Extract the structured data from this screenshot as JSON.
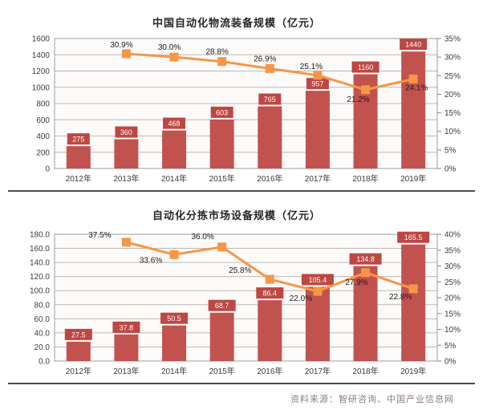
{
  "chart_data": [
    {
      "type": "combo_bar_line",
      "title": "中国自动化物流装备规模（亿元）",
      "categories": [
        "2012年",
        "2013年",
        "2014年",
        "2015年",
        "2016年",
        "2017年",
        "2018年",
        "2019年"
      ],
      "bars": {
        "name": "规模（亿元）",
        "values": [
          275,
          360,
          468,
          603,
          765,
          957,
          1160,
          1440
        ],
        "labels": [
          "275",
          "360",
          "468",
          "603",
          "765",
          "957",
          "1160",
          "1440"
        ]
      },
      "line": {
        "name": "增长率",
        "values": [
          null,
          30.9,
          30.0,
          28.8,
          26.9,
          25.1,
          21.2,
          24.1
        ],
        "labels": [
          "",
          "30.9%",
          "30.0%",
          "28.8%",
          "26.9%",
          "25.1%",
          "21.2%",
          "24.1%"
        ]
      },
      "left_axis": {
        "min": 0,
        "max": 1600,
        "step": 200,
        "tick_labels": [
          "0",
          "200",
          "400",
          "600",
          "800",
          "1000",
          "1200",
          "1400",
          "1600"
        ]
      },
      "right_axis": {
        "min": 0,
        "max": 35,
        "step": 5,
        "tick_labels": [
          "0%",
          "5%",
          "10%",
          "15%",
          "20%",
          "25%",
          "30%",
          "35%"
        ]
      },
      "grid": true,
      "legend": "none"
    },
    {
      "type": "combo_bar_line",
      "title": "自动化分拣市场设备规模（亿元）",
      "categories": [
        "2012年",
        "2013年",
        "2014年",
        "2015年",
        "2016年",
        "2017年",
        "2018年",
        "2019年"
      ],
      "bars": {
        "name": "规模（亿元）",
        "values": [
          27.5,
          37.8,
          50.5,
          68.7,
          86.4,
          105.4,
          134.8,
          165.5
        ],
        "labels": [
          "27.5",
          "37.8",
          "50.5",
          "68.7",
          "86.4",
          "105.4",
          "134.8",
          "165.5"
        ]
      },
      "line": {
        "name": "增长率",
        "values": [
          null,
          37.5,
          33.6,
          36.0,
          25.8,
          22.0,
          27.9,
          22.8
        ],
        "labels": [
          "",
          "37.5%",
          "33.6%",
          "36.0%",
          "25.8%",
          "22.0%",
          "27.9%",
          "22.8%"
        ]
      },
      "left_axis": {
        "min": 0,
        "max": 180,
        "step": 20,
        "tick_labels": [
          "0.0",
          "20.0",
          "40.0",
          "60.0",
          "80.0",
          "100.0",
          "120.0",
          "140.0",
          "160.0",
          "180.0"
        ]
      },
      "right_axis": {
        "min": 0,
        "max": 40,
        "step": 5,
        "tick_labels": [
          "0%",
          "5%",
          "10%",
          "15%",
          "20%",
          "25%",
          "30%",
          "35%",
          "40%"
        ]
      },
      "grid": true,
      "legend": "none"
    }
  ],
  "footer": {
    "source_text": "资料来源：智研咨询、中国产业信息网"
  },
  "colors": {
    "bar": "#c2524e",
    "bar_label_bg": "#bd4742",
    "line": "#f79646",
    "grid": "#bdb7b5",
    "plot_border": "#9c9c9c",
    "plot_bg": "#fdfbfa",
    "axis_text": "#3b3b3b",
    "pct_label_text": "#1a1a1a",
    "bar_label_text": "#ffffff"
  }
}
